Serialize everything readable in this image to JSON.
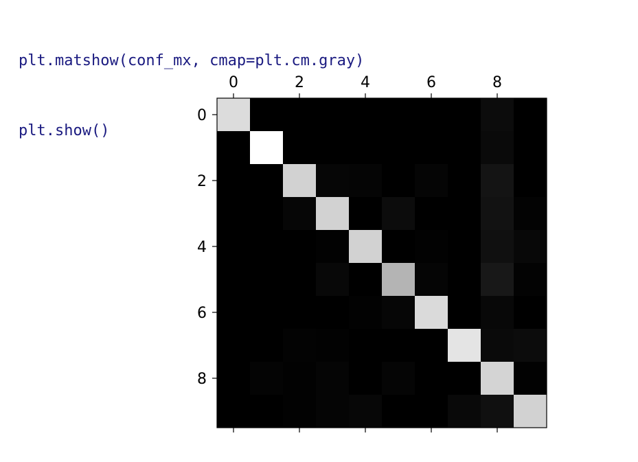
{
  "code": {
    "line1": "plt.matshow(conf_mx, cmap=plt.cm.gray)",
    "line2": "plt.show()"
  },
  "chart_data": {
    "type": "heatmap",
    "colormap": "gray",
    "rows": 10,
    "cols": 10,
    "x_ticks": [
      "0",
      "2",
      "4",
      "6",
      "8"
    ],
    "y_ticks": [
      "0",
      "2",
      "4",
      "6",
      "8"
    ],
    "x_tick_positions": [
      0,
      2,
      4,
      6,
      8
    ],
    "y_tick_positions": [
      0,
      2,
      4,
      6,
      8
    ],
    "xlim": [
      -0.5,
      9.5
    ],
    "ylim": [
      9.5,
      -0.5
    ],
    "x_axis_position": "top",
    "grid": false,
    "values": [
      [
        220,
        0,
        0,
        0,
        0,
        0,
        0,
        0,
        12,
        0
      ],
      [
        0,
        255,
        0,
        0,
        0,
        0,
        0,
        0,
        10,
        0
      ],
      [
        0,
        0,
        210,
        6,
        5,
        0,
        5,
        0,
        20,
        0
      ],
      [
        0,
        0,
        6,
        210,
        0,
        12,
        0,
        0,
        18,
        3
      ],
      [
        0,
        0,
        0,
        2,
        210,
        0,
        2,
        0,
        16,
        8
      ],
      [
        0,
        0,
        0,
        8,
        0,
        180,
        5,
        0,
        24,
        3
      ],
      [
        0,
        0,
        0,
        0,
        2,
        6,
        218,
        0,
        8,
        0
      ],
      [
        0,
        0,
        3,
        2,
        0,
        0,
        0,
        228,
        10,
        12
      ],
      [
        0,
        4,
        2,
        5,
        0,
        5,
        0,
        0,
        212,
        2
      ],
      [
        0,
        0,
        2,
        5,
        7,
        0,
        0,
        9,
        16,
        210
      ]
    ]
  }
}
